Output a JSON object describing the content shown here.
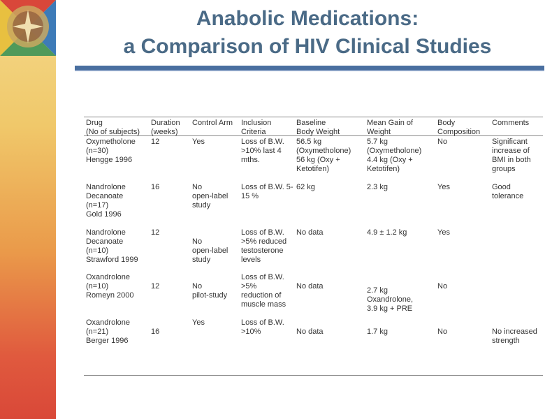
{
  "title": {
    "line1": "Anabolic Medications:",
    "line2": "a Comparison of HIV  Clinical Studies"
  },
  "table": {
    "headers": {
      "drug": [
        "Drug",
        "(No of subjects)"
      ],
      "duration": [
        "Duration",
        "(weeks)"
      ],
      "control": [
        "Control Arm"
      ],
      "inclusion": [
        "Inclusion",
        "Criteria"
      ],
      "baseline": [
        "Baseline",
        "Body Weight"
      ],
      "gain": [
        "Mean Gain of",
        "Weight"
      ],
      "body": [
        "Body",
        "Composition"
      ],
      "comments": [
        "Comments"
      ]
    },
    "rows": [
      {
        "drug": [
          "Oxymetholone",
          "(n=30)",
          "Hengge 1996"
        ],
        "duration": [
          "12"
        ],
        "control": [
          "Yes"
        ],
        "inclusion": [
          "Loss of B.W.",
          ">10% last 4",
          "mths."
        ],
        "baseline": [
          "56.5 kg",
          "(Oxymetholone)",
          "56 kg (Oxy +",
          "Ketotifen)"
        ],
        "gain": [
          "5.7 kg",
          "(Oxymetholone)",
          "4.4 kg (Oxy +",
          "Ketotifen)"
        ],
        "body": [
          "No"
        ],
        "comments": [
          "Significant",
          "increase of",
          "BMI in both",
          "groups"
        ]
      },
      {
        "drug": [
          "Nandrolone",
          "Decanoate",
          "(n=17)",
          "Gold 1996"
        ],
        "duration": [
          "16"
        ],
        "control": [
          "No",
          "open-label",
          "study"
        ],
        "inclusion": [
          "Loss of B.W. 5-",
          "15 %"
        ],
        "baseline": [
          "62 kg"
        ],
        "gain": [
          "2.3 kg"
        ],
        "body": [
          "Yes"
        ],
        "comments": [
          "Good",
          "tolerance"
        ]
      },
      {
        "drug": [
          "Nandrolone",
          "Decanoate",
          "(n=10)",
          "Strawford 1999"
        ],
        "duration": [
          "12"
        ],
        "control": [
          "No",
          "open-label",
          "study"
        ],
        "inclusion": [
          "Loss of B.W.",
          ">5% reduced",
          "testosterone",
          "levels"
        ],
        "baseline": [
          "No data"
        ],
        "gain": [
          "4.9 ± 1.2 kg"
        ],
        "body": [
          "Yes"
        ],
        "comments": []
      },
      {
        "drug": [
          "Oxandrolone",
          "(n=10)",
          "Romeyn 2000"
        ],
        "duration": [
          "12"
        ],
        "control": [
          "No",
          "pilot-study"
        ],
        "inclusion": [
          "Loss of B.W.",
          ">5%",
          "reduction of",
          "muscle mass"
        ],
        "baseline": [
          "No data"
        ],
        "gain": [
          "2.7 kg",
          "Oxandrolone,",
          "3.9 kg + PRE"
        ],
        "body": [
          "No"
        ],
        "comments": []
      },
      {
        "drug": [
          "Oxandrolone",
          "(n=21)",
          "Berger 1996"
        ],
        "duration": [
          "16"
        ],
        "control": [
          "Yes"
        ],
        "inclusion": [
          "Loss of B.W.",
          ">10%"
        ],
        "baseline": [
          "No data"
        ],
        "gain": [
          "1.7 kg"
        ],
        "body": [
          "No"
        ],
        "comments": [
          "No increased",
          "strength"
        ]
      }
    ]
  }
}
